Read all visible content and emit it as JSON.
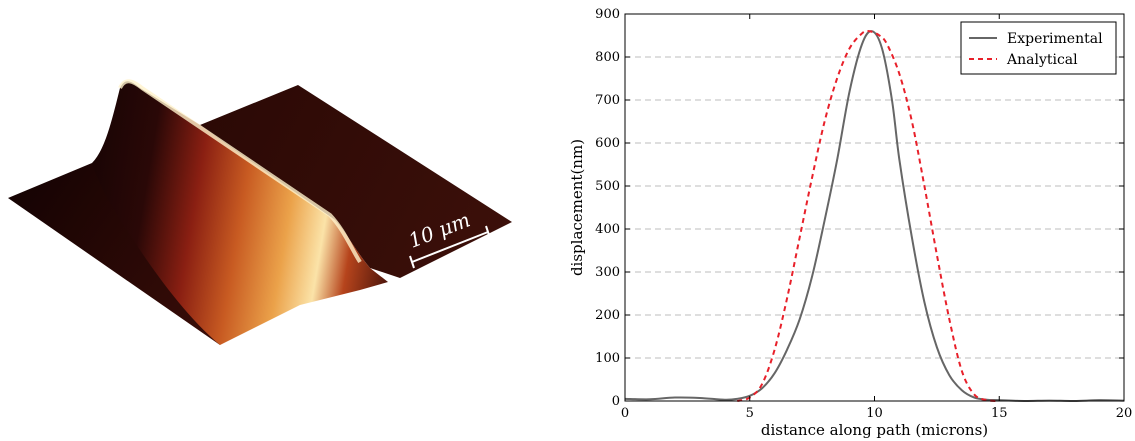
{
  "afm_image": {
    "scale_bar_label": "10 μm",
    "colors": {
      "dark": "#1a0505",
      "mid": "#8a1f12",
      "orange": "#d9742a",
      "light": "#fbe7b0"
    }
  },
  "chart_data": {
    "type": "line",
    "title": "",
    "xlabel": "distance along path (microns)",
    "ylabel": "displacement(nm)",
    "xlim": [
      0,
      20
    ],
    "ylim": [
      0,
      900
    ],
    "xticks": [
      "0",
      "5",
      "10",
      "15",
      "20"
    ],
    "yticks": [
      "0",
      "100",
      "200",
      "300",
      "400",
      "500",
      "600",
      "700",
      "800",
      "900"
    ],
    "grid": "horizontal dashed",
    "legend_position": "top-right",
    "series": [
      {
        "name": "Experimental",
        "color": "#666666",
        "style": "solid",
        "x": [
          0,
          1,
          2,
          3,
          4,
          4.5,
          5,
          5.5,
          6,
          6.5,
          7,
          7.5,
          8,
          8.5,
          9,
          9.5,
          9.9,
          10.3,
          10.7,
          11,
          11.5,
          12,
          12.5,
          13,
          13.5,
          14,
          14.5,
          15,
          16,
          17,
          18,
          19,
          20
        ],
        "y": [
          5,
          4,
          8,
          7,
          3,
          5,
          12,
          30,
          65,
          120,
          190,
          290,
          420,
          560,
          720,
          830,
          860,
          820,
          700,
          560,
          380,
          230,
          125,
          60,
          25,
          8,
          3,
          2,
          0,
          1,
          0,
          2,
          1
        ]
      },
      {
        "name": "Analytical",
        "color": "#e8202a",
        "style": "dashed",
        "x": [
          4.5,
          5,
          5.5,
          6,
          6.5,
          7,
          7.5,
          8,
          8.5,
          9,
          9.5,
          9.8,
          10.2,
          10.5,
          11,
          11.5,
          12,
          12.5,
          13,
          13.5,
          14,
          14.5,
          15
        ],
        "y": [
          0,
          8,
          40,
          120,
          240,
          380,
          520,
          650,
          750,
          820,
          855,
          860,
          850,
          830,
          760,
          650,
          500,
          340,
          190,
          70,
          15,
          2,
          0
        ]
      }
    ]
  }
}
